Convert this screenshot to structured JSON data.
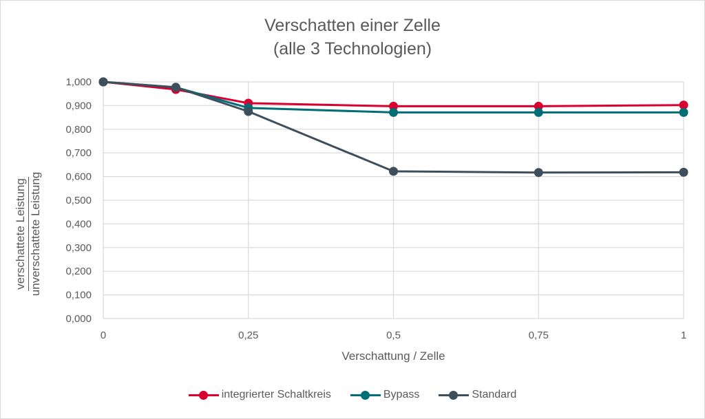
{
  "chart_data": {
    "type": "line",
    "title": [
      "Verschatten einer Zelle",
      "(alle 3 Technologien)"
    ],
    "xlabel": "Verschattung / Zelle",
    "ylabel": {
      "numerator": "verschattete Leistung",
      "denominator": "unverschattete Leistung"
    },
    "x": [
      0,
      0.125,
      0.25,
      0.5,
      0.75,
      1
    ],
    "xlim": [
      0,
      1
    ],
    "ylim": [
      0,
      1
    ],
    "x_ticks": [
      {
        "value": 0,
        "label": "0"
      },
      {
        "value": 0.25,
        "label": "0,25"
      },
      {
        "value": 0.5,
        "label": "0,5"
      },
      {
        "value": 0.75,
        "label": "0,75"
      },
      {
        "value": 1,
        "label": "1"
      }
    ],
    "y_ticks": [
      {
        "value": 0.0,
        "label": "0,000"
      },
      {
        "value": 0.1,
        "label": "0,100"
      },
      {
        "value": 0.2,
        "label": "0,200"
      },
      {
        "value": 0.3,
        "label": "0,300"
      },
      {
        "value": 0.4,
        "label": "0,400"
      },
      {
        "value": 0.5,
        "label": "0,500"
      },
      {
        "value": 0.6,
        "label": "0,600"
      },
      {
        "value": 0.7,
        "label": "0,700"
      },
      {
        "value": 0.8,
        "label": "0,800"
      },
      {
        "value": 0.9,
        "label": "0,900"
      },
      {
        "value": 1.0,
        "label": "1,000"
      }
    ],
    "grid": true,
    "legend_position": "bottom",
    "series": [
      {
        "name": "integrierter Schaltkreis",
        "color": "#d9002f",
        "values": [
          1.0,
          0.968,
          0.91,
          0.897,
          0.897,
          0.902
        ]
      },
      {
        "name": "Bypass",
        "color": "#006d77",
        "values": [
          1.0,
          0.977,
          0.89,
          0.871,
          0.871,
          0.871
        ]
      },
      {
        "name": "Standard",
        "color": "#3d4f5c",
        "values": [
          1.0,
          0.977,
          0.875,
          0.622,
          0.617,
          0.618
        ]
      }
    ]
  }
}
